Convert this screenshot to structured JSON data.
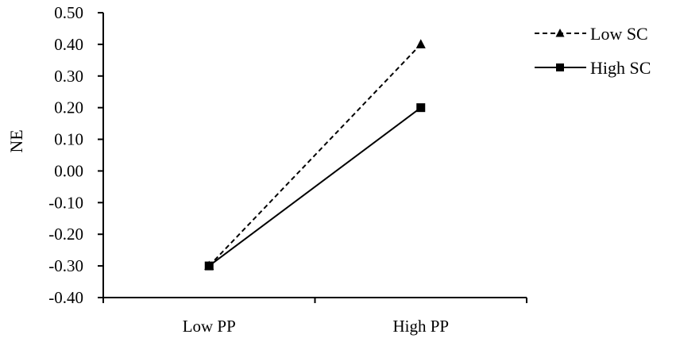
{
  "chart_data": {
    "type": "line",
    "title": "",
    "xlabel": "",
    "ylabel": "NE",
    "categories": [
      "Low PP",
      "High PP"
    ],
    "series": [
      {
        "name": "Low SC",
        "values": [
          -0.3,
          0.4
        ],
        "line_style": "dashed",
        "marker": "triangle",
        "color": "#000000"
      },
      {
        "name": "High SC",
        "values": [
          -0.3,
          0.2
        ],
        "line_style": "solid",
        "marker": "square",
        "color": "#000000"
      }
    ],
    "ylim": [
      -0.4,
      0.5
    ],
    "yticks": [
      "0.50",
      "0.40",
      "0.30",
      "0.20",
      "0.10",
      "0.00",
      "-0.10",
      "-0.20",
      "-0.30",
      "-0.40"
    ],
    "grid": false,
    "legend_position": "top-right"
  }
}
